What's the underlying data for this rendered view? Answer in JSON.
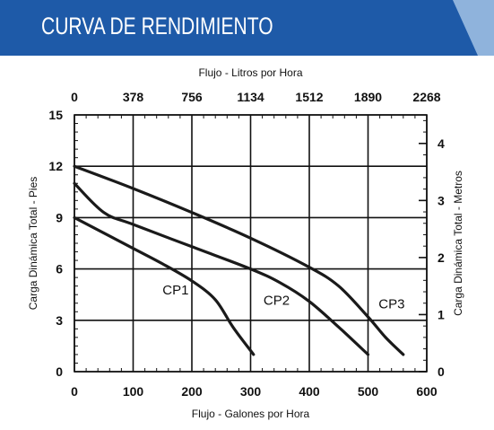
{
  "header": {
    "title": "CURVA DE RENDIMIENTO",
    "band_color": "#1e5aa8",
    "accent_color": "#8fb3dc"
  },
  "chart_data": {
    "type": "line",
    "title": "CURVA DE RENDIMIENTO",
    "xlabel": "Flujo - Galones por Hora",
    "x2label": "Flujo - Litros por Hora",
    "ylabel": "Carga Dinámica Total - Pies",
    "y2label": "Carga Dinámica Total - Metros",
    "xlim": [
      0,
      600
    ],
    "ylim": [
      0,
      15
    ],
    "x2lim": [
      0,
      2268
    ],
    "y2lim": [
      0,
      4.5
    ],
    "x_ticks": [
      "0",
      "100",
      "200",
      "300",
      "400",
      "500",
      "600"
    ],
    "x2_ticks": [
      "0",
      "378",
      "756",
      "1134",
      "1512",
      "1890",
      "2268"
    ],
    "y_ticks": [
      "0",
      "3",
      "6",
      "9",
      "12",
      "15"
    ],
    "y2_ticks": [
      "0",
      "1",
      "2",
      "3",
      "4"
    ],
    "grid": true,
    "series": [
      {
        "name": "CP1",
        "x": [
          0,
          50,
          100,
          150,
          200,
          240,
          270,
          305
        ],
        "y": [
          9,
          8.1,
          7.2,
          6.3,
          5.3,
          4.2,
          2.6,
          1.0
        ]
      },
      {
        "name": "CP2",
        "x": [
          0,
          50,
          100,
          200,
          300,
          350,
          400,
          450,
          500
        ],
        "y": [
          11,
          9.3,
          8.6,
          7.3,
          6.0,
          5.2,
          4.1,
          2.6,
          1.0
        ]
      },
      {
        "name": "CP3",
        "x": [
          0,
          100,
          200,
          300,
          400,
          450,
          500,
          530,
          560
        ],
        "y": [
          12,
          10.7,
          9.3,
          7.8,
          6.1,
          5.0,
          3.2,
          2.0,
          1.0
        ]
      }
    ]
  }
}
